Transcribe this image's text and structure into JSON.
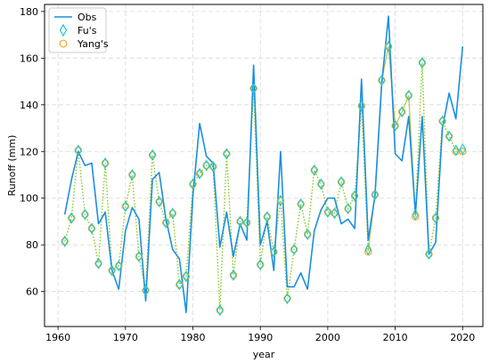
{
  "chart_data": {
    "type": "line",
    "xlabel": "year",
    "ylabel": "Runoff (mm)",
    "xlim": [
      1958,
      2023
    ],
    "ylim": [
      45,
      183
    ],
    "xticks": [
      1960,
      1970,
      1980,
      1990,
      2000,
      2010,
      2020
    ],
    "yticks": [
      60,
      80,
      100,
      120,
      140,
      160,
      180
    ],
    "grid": true,
    "legend_position": "top-left",
    "x": [
      1961,
      1962,
      1963,
      1964,
      1965,
      1966,
      1967,
      1968,
      1969,
      1970,
      1971,
      1972,
      1973,
      1974,
      1975,
      1976,
      1977,
      1978,
      1979,
      1980,
      1981,
      1982,
      1983,
      1984,
      1985,
      1986,
      1987,
      1988,
      1989,
      1990,
      1991,
      1992,
      1993,
      1994,
      1995,
      1996,
      1997,
      1998,
      1999,
      2000,
      2001,
      2002,
      2003,
      2004,
      2005,
      2006,
      2007,
      2008,
      2009,
      2010,
      2011,
      2012,
      2013,
      2014,
      2015,
      2016,
      2017,
      2018,
      2019,
      2020
    ],
    "series": [
      {
        "name": "Obs",
        "style": "line",
        "color": "#1a8fe0",
        "values": [
          93,
          108,
          120,
          114,
          115,
          89,
          94,
          69,
          61,
          86,
          96,
          91,
          56,
          108,
          111,
          91,
          78,
          74,
          51,
          101,
          132,
          118,
          115,
          79,
          94,
          75,
          89,
          82,
          157,
          80,
          90,
          69,
          120,
          62,
          62,
          68,
          61,
          86,
          95,
          100,
          100,
          89,
          91,
          87,
          151,
          82,
          101,
          149,
          178,
          119,
          116,
          135,
          93,
          135,
          76,
          81,
          130,
          145,
          134,
          165
        ]
      },
      {
        "name": "Fu's",
        "style": "marker",
        "marker": "diamond",
        "color": "#17c9c9",
        "line_color": "#7fd63f",
        "values": [
          81.5,
          91.5,
          120.5,
          93,
          87,
          72,
          115,
          69,
          71,
          96.5,
          110,
          75,
          60.5,
          118.5,
          98.5,
          89.5,
          93.5,
          63,
          66.5,
          106,
          110.5,
          114,
          113.5,
          52,
          119,
          67,
          90,
          89.5,
          147,
          71.5,
          92,
          77,
          99,
          57,
          78,
          97.5,
          84.5,
          112,
          106,
          94,
          93.5,
          107,
          95.5,
          101,
          139.5,
          78,
          101.5,
          150.5,
          165,
          131,
          137,
          144,
          93,
          158,
          76,
          91.5,
          133,
          126.5,
          120.5,
          121
        ]
      },
      {
        "name": "Yang's",
        "style": "marker",
        "marker": "circle",
        "color": "#f5a623",
        "line_color": "#f5a623",
        "values": [
          81.5,
          91.5,
          120.5,
          93,
          87,
          72,
          115,
          69,
          71,
          96.5,
          110,
          75,
          60.5,
          118.5,
          98.5,
          89.5,
          93.5,
          63,
          66.5,
          106,
          110.5,
          114,
          113.5,
          52,
          119,
          67,
          90,
          89.5,
          147,
          71.5,
          92,
          77,
          99,
          57,
          78,
          97.5,
          84.5,
          112,
          106,
          94,
          93.5,
          107,
          95.5,
          101,
          139.5,
          77,
          101.5,
          150.5,
          165,
          131,
          137,
          144,
          92,
          158,
          76,
          91.5,
          133,
          126.5,
          120,
          120
        ]
      }
    ]
  }
}
